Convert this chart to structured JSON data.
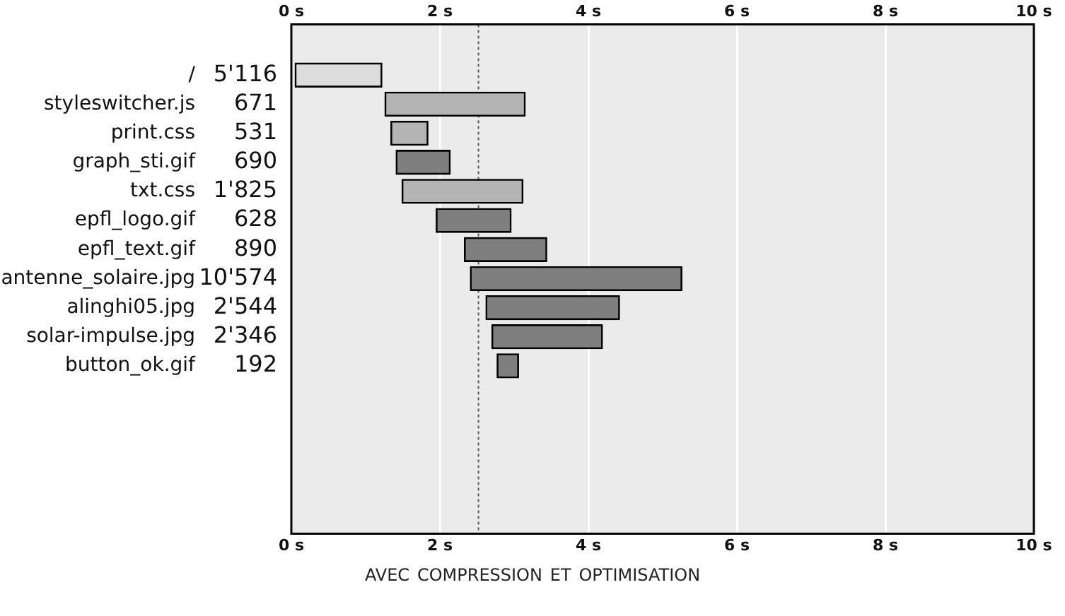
{
  "chart_data": {
    "type": "bar",
    "orientation": "horizontal",
    "title": "avec compression et optimisation",
    "categories": [
      "/",
      "styleswitcher.js",
      "print.css",
      "graph_sti.gif",
      "txt.css",
      "epfl_logo.gif",
      "epfl_text.gif",
      "antenne_solaire.jpg",
      "alinghi05.jpg",
      "solar-impulse.jpg",
      "button_ok.gif"
    ],
    "base": [
      0.05,
      1.26,
      1.34,
      1.41,
      1.49,
      1.95,
      2.33,
      2.41,
      2.62,
      2.7,
      2.77
    ],
    "values": [
      1.17,
      1.89,
      0.5,
      0.73,
      1.63,
      1.01,
      1.11,
      2.85,
      1.8,
      1.49,
      0.29
    ],
    "colors": [
      "#dcdcdc",
      "#b4b4b4",
      "#b4b4b4",
      "#7f7f7f",
      "#b4b4b4",
      "#7f7f7f",
      "#7f7f7f",
      "#7f7f7f",
      "#7f7f7f",
      "#7f7f7f",
      "#7f7f7f"
    ],
    "xlim": [
      0,
      10
    ],
    "xticks": [
      {
        "value": 0,
        "label": "0 s"
      },
      {
        "value": 2,
        "label": "2 s"
      },
      {
        "value": 4,
        "label": "4 s"
      },
      {
        "value": 6,
        "label": "6 s"
      },
      {
        "value": 8,
        "label": "8 s"
      },
      {
        "value": 10,
        "label": "10 s"
      }
    ],
    "ref_lines": [
      {
        "axis": "x",
        "value": 2.52,
        "line_style": "dotted",
        "color": "#555555"
      }
    ],
    "annotations": [
      "5'116",
      "671",
      "531",
      "690",
      "1'825",
      "628",
      "890",
      "10'574",
      "2'544",
      "2'346",
      "192"
    ],
    "grid": "x",
    "legend": false
  }
}
